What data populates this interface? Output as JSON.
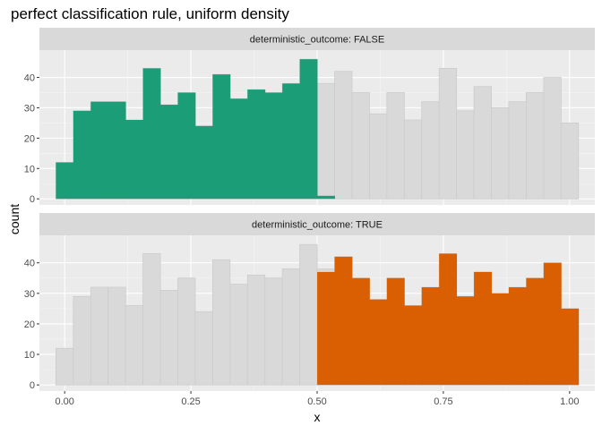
{
  "chart_data": {
    "type": "bar",
    "title": "perfect classification rule, uniform density",
    "xlabel": "x",
    "ylabel": "count",
    "xlim": [
      -0.05,
      1.05
    ],
    "ylim": [
      -2,
      49
    ],
    "x_ticks": [
      {
        "value": 0,
        "label": "0.00"
      },
      {
        "value": 0.25,
        "label": "0.25"
      },
      {
        "value": 0.5,
        "label": "0.50"
      },
      {
        "value": 0.75,
        "label": "0.75"
      },
      {
        "value": 1,
        "label": "1.00"
      }
    ],
    "y_ticks": [
      0,
      10,
      20,
      30,
      40
    ],
    "bin_width": 0.0345,
    "first_bin_center": -0.0001,
    "background_counts": [
      12,
      29,
      32,
      32,
      26,
      43,
      31,
      35,
      24,
      41,
      33,
      36,
      35,
      38,
      46,
      38,
      42,
      35,
      28,
      35,
      26,
      32,
      43,
      29,
      37,
      30,
      32,
      35,
      40,
      25
    ],
    "colors": {
      "panel_background": "#ebebeb",
      "grid_major": "#ffffff",
      "grid_minor": "#f5f5f5",
      "strip_background": "#d9d9d9",
      "background_fill": "#d9d9d9",
      "background_stroke": "#cccccc",
      "false_fill": "#1b9e77",
      "true_fill": "#d95f02"
    },
    "panels": [
      {
        "strip_label": "deterministic_outcome: FALSE",
        "highlight_color": "#1b9e77",
        "highlight_counts": [
          12,
          29,
          32,
          32,
          26,
          43,
          31,
          35,
          24,
          41,
          33,
          36,
          35,
          38,
          46,
          1,
          0,
          0,
          0,
          0,
          0,
          0,
          0,
          0,
          0,
          0,
          0,
          0,
          0,
          0
        ]
      },
      {
        "strip_label": "deterministic_outcome: TRUE",
        "highlight_color": "#d95f02",
        "highlight_counts": [
          0,
          0,
          0,
          0,
          0,
          0,
          0,
          0,
          0,
          0,
          0,
          0,
          0,
          0,
          0,
          37,
          42,
          35,
          28,
          35,
          26,
          32,
          43,
          29,
          37,
          30,
          32,
          35,
          40,
          25
        ]
      }
    ]
  }
}
